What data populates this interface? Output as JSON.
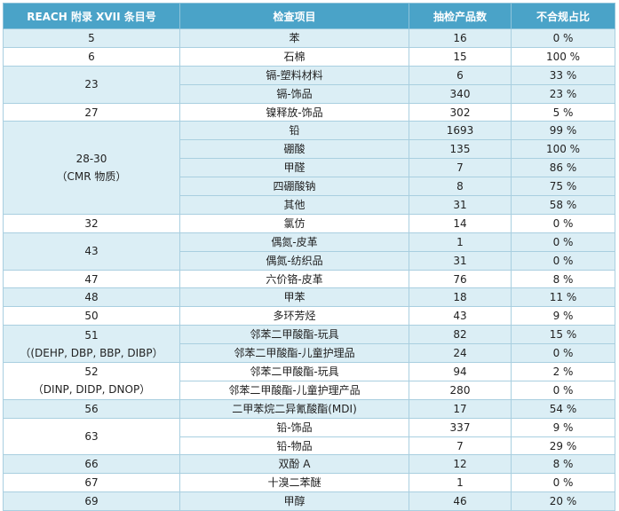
{
  "table": {
    "header": [
      "REACH 附录 XVII 条目号",
      "检查项目",
      "抽检产品数",
      "不合规占比"
    ],
    "groups": [
      {
        "entry": [
          "5"
        ],
        "items": [
          {
            "item": "苯",
            "count": 16,
            "rate": "0 %"
          }
        ]
      },
      {
        "entry": [
          "6"
        ],
        "items": [
          {
            "item": "石棉",
            "count": 15,
            "rate": "100 %"
          }
        ]
      },
      {
        "entry": [
          "23"
        ],
        "items": [
          {
            "item": "镉-塑料材料",
            "count": 6,
            "rate": "33 %"
          },
          {
            "item": "镉-饰品",
            "count": 340,
            "rate": "23 %"
          }
        ]
      },
      {
        "entry": [
          "27"
        ],
        "items": [
          {
            "item": "镍释放-饰品",
            "count": 302,
            "rate": "5 %"
          }
        ]
      },
      {
        "entry": [
          "28-30",
          "（CMR 物质）"
        ],
        "items": [
          {
            "item": "铅",
            "count": 1693,
            "rate": "99 %"
          },
          {
            "item": "硼酸",
            "count": 135,
            "rate": "100 %"
          },
          {
            "item": "甲醛",
            "count": 7,
            "rate": "86 %"
          },
          {
            "item": "四硼酸钠",
            "count": 8,
            "rate": "75 %"
          },
          {
            "item": "其他",
            "count": 31,
            "rate": "58 %"
          }
        ]
      },
      {
        "entry": [
          "32"
        ],
        "items": [
          {
            "item": "氯仿",
            "count": 14,
            "rate": "0 %"
          }
        ]
      },
      {
        "entry": [
          "43"
        ],
        "items": [
          {
            "item": "偶氮-皮革",
            "count": 1,
            "rate": "0 %"
          },
          {
            "item": "偶氮-纺织品",
            "count": 31,
            "rate": "0 %"
          }
        ]
      },
      {
        "entry": [
          "47"
        ],
        "items": [
          {
            "item": "六价铬-皮革",
            "count": 76,
            "rate": "8 %"
          }
        ]
      },
      {
        "entry": [
          "48"
        ],
        "items": [
          {
            "item": "甲苯",
            "count": 18,
            "rate": "11 %"
          }
        ]
      },
      {
        "entry": [
          "50"
        ],
        "items": [
          {
            "item": "多环芳烃",
            "count": 43,
            "rate": "9 %"
          }
        ]
      },
      {
        "entry": [
          "51",
          "（(DEHP, DBP, BBP, DIBP）"
        ],
        "items": [
          {
            "item": "邻苯二甲酸酯-玩具",
            "count": 82,
            "rate": "15 %"
          },
          {
            "item": "邻苯二甲酸酯-儿童护理品",
            "count": 24,
            "rate": "0 %"
          }
        ]
      },
      {
        "entry": [
          "52",
          "（DINP, DIDP, DNOP）"
        ],
        "items": [
          {
            "item": "邻苯二甲酸酯-玩具",
            "count": 94,
            "rate": "2 %"
          },
          {
            "item": "邻苯二甲酸酯-儿童护理产品",
            "count": 280,
            "rate": "0 %"
          }
        ]
      },
      {
        "entry": [
          "56"
        ],
        "items": [
          {
            "item": "二甲苯烷二异氰酸酯(MDI)",
            "count": 17,
            "rate": "54 %"
          }
        ]
      },
      {
        "entry": [
          "63"
        ],
        "items": [
          {
            "item": "铅-饰品",
            "count": 337,
            "rate": "9 %"
          },
          {
            "item": "铅-物品",
            "count": 7,
            "rate": "29 %"
          }
        ]
      },
      {
        "entry": [
          "66"
        ],
        "items": [
          {
            "item": "双酚 A",
            "count": 12,
            "rate": "8 %"
          }
        ]
      },
      {
        "entry": [
          "67"
        ],
        "items": [
          {
            "item": "十溴二苯醚",
            "count": 1,
            "rate": "0 %"
          }
        ]
      },
      {
        "entry": [
          "69"
        ],
        "items": [
          {
            "item": "甲醇",
            "count": 46,
            "rate": "20 %"
          }
        ]
      }
    ]
  }
}
